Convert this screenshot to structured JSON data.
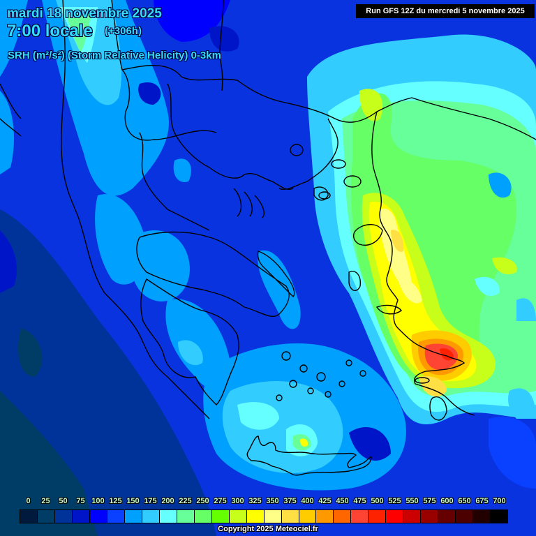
{
  "header": {
    "date": "mardi 18 novembre 2025",
    "time": "7:00 locale",
    "lead": "(+306h)",
    "parameter": "SRH (m²/s²) (Storm Relative Helicity) 0-3km"
  },
  "run_info": "Run GFS 12Z du mercredi 5 novembre 2025",
  "copyright": "Copyright 2025 Meteociel.fr",
  "legend": {
    "labels": [
      "0",
      "25",
      "50",
      "75",
      "100",
      "125",
      "150",
      "175",
      "200",
      "225",
      "250",
      "275",
      "300",
      "325",
      "350",
      "375",
      "400",
      "425",
      "450",
      "475",
      "500",
      "525",
      "550",
      "575",
      "600",
      "650",
      "675",
      "700"
    ],
    "colors": [
      "#001a3d",
      "#003d66",
      "#00339a",
      "#0015c8",
      "#0000ff",
      "#0a40ff",
      "#00a0ff",
      "#33ccff",
      "#66ffff",
      "#66ff99",
      "#66ff66",
      "#66ff00",
      "#c8ff1a",
      "#ffff00",
      "#ffff88",
      "#ffe044",
      "#ffcc00",
      "#ff9900",
      "#ff6600",
      "#ff4433",
      "#ff2200",
      "#ff0000",
      "#cc0000",
      "#990000",
      "#660000",
      "#4d0000",
      "#220000",
      "#000000"
    ]
  },
  "map": {
    "region": "Greece / Aegean / Western Turkey",
    "background_color": "#0a33e0",
    "max_area": "SW Turkey near Bodrum peninsula, ~475-500 m²/s²",
    "secondary_max": "Western Anatolia coast, ~300-350 m²/s²",
    "crete_local_max": "~275-325 m²/s²"
  }
}
